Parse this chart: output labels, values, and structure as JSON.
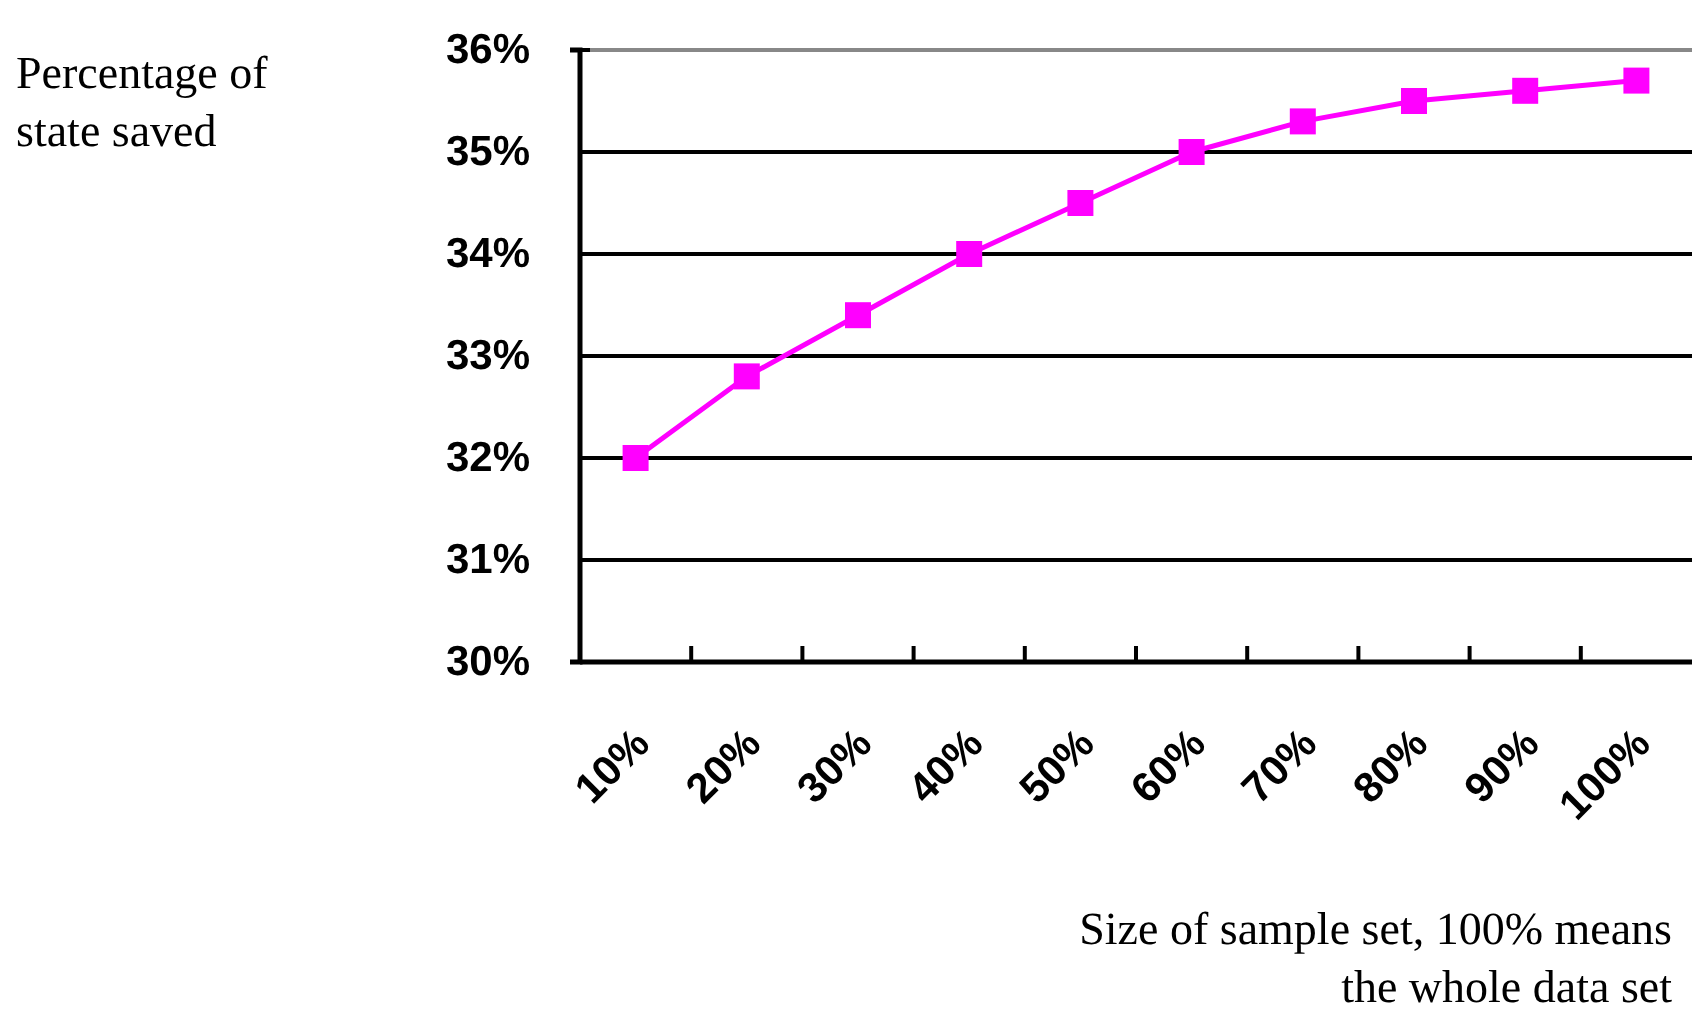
{
  "chart_data": {
    "type": "line",
    "ylabel": "Percentage of state saved",
    "xlabel": "Size of sample set, 100% means the whole data set",
    "categories": [
      "10%",
      "20%",
      "30%",
      "40%",
      "50%",
      "60%",
      "70%",
      "80%",
      "90%",
      "100%"
    ],
    "series": [
      {
        "color": "#ff00ff",
        "values": [
          32.0,
          32.8,
          33.4,
          34.0,
          34.5,
          35.0,
          35.3,
          35.5,
          35.6,
          35.7
        ]
      }
    ],
    "ylim": [
      30,
      36
    ],
    "yticks": [
      {
        "value": 30,
        "label": "30%"
      },
      {
        "value": 31,
        "label": "31%"
      },
      {
        "value": 32,
        "label": "32%"
      },
      {
        "value": 33,
        "label": "33%"
      },
      {
        "value": 34,
        "label": "34%"
      },
      {
        "value": 35,
        "label": "35%"
      },
      {
        "value": 36,
        "label": "36%"
      }
    ],
    "grid": "y",
    "marker": "square",
    "line_style": "solid"
  }
}
